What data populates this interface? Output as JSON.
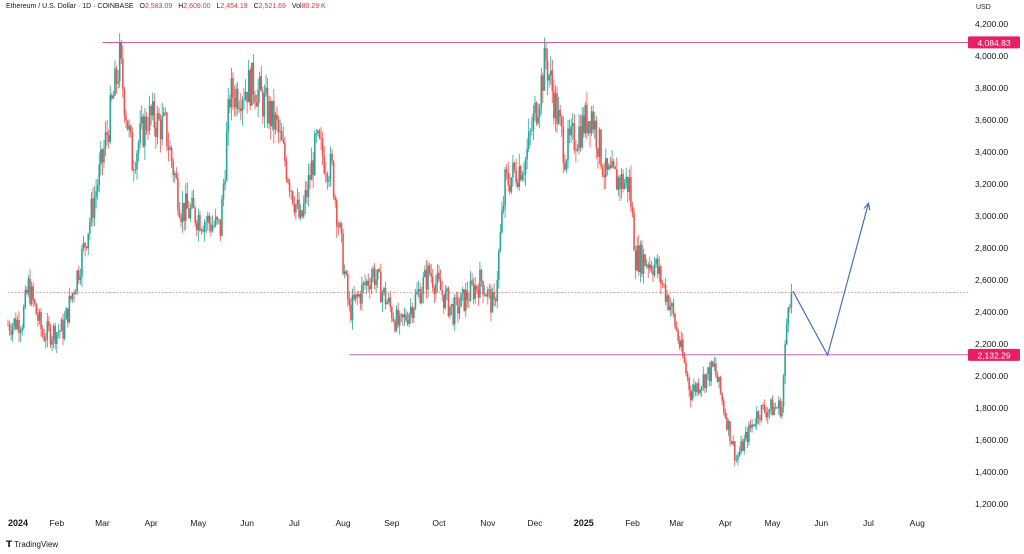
{
  "header": {
    "symbol": "Ethereum / U.S. Dollar · 1D · COINBASE",
    "open_label": "O",
    "open": "2,583.09",
    "high_label": "H",
    "high": "2,609.00",
    "low_label": "L",
    "low": "2,454.19",
    "close_label": "C",
    "close": "2,521.69",
    "vol_label": "Vol",
    "vol": "80.29 K"
  },
  "currency": "USD",
  "branding": "TradingView",
  "colors": {
    "up": "#26a69a",
    "down": "#ef5350",
    "level_line": "#c44ca0",
    "level_badge": "#e91e63",
    "projection": "#4a6fb5",
    "price_line": "#e57373"
  },
  "chart_data": {
    "type": "candlestick",
    "y_axis": {
      "ylim": [
        1150,
        4300
      ],
      "ticks": [
        1200,
        1400,
        1600,
        1800,
        2000,
        2200,
        2400,
        2600,
        2800,
        3000,
        3200,
        3400,
        3600,
        3800,
        4000,
        4200
      ],
      "tick_labels": [
        "1,200.00",
        "1,400.00",
        "1,600.00",
        "1,800.00",
        "2,000.00",
        "2,200.00",
        "2,400.00",
        "2,600.00",
        "2,800.00",
        "3,000.00",
        "3,200.00",
        "3,400.00",
        "3,600.00",
        "3,800.00",
        "4,000.00",
        "4,200.00"
      ]
    },
    "x_axis": {
      "range": [
        "2024-01-01",
        "2025-08-25"
      ],
      "ticks": [
        {
          "date": "2024-01-01",
          "label": "2024",
          "bold": true
        },
        {
          "date": "2024-02-01",
          "label": "Feb"
        },
        {
          "date": "2024-03-01",
          "label": "Mar"
        },
        {
          "date": "2024-04-01",
          "label": "Apr"
        },
        {
          "date": "2024-05-01",
          "label": "May"
        },
        {
          "date": "2024-06-01",
          "label": "Jun"
        },
        {
          "date": "2024-07-01",
          "label": "Jul"
        },
        {
          "date": "2024-08-01",
          "label": "Aug"
        },
        {
          "date": "2024-09-01",
          "label": "Sep"
        },
        {
          "date": "2024-10-01",
          "label": "Oct"
        },
        {
          "date": "2024-11-01",
          "label": "Nov"
        },
        {
          "date": "2024-12-01",
          "label": "Dec"
        },
        {
          "date": "2025-01-01",
          "label": "2025",
          "bold": true
        },
        {
          "date": "2025-02-01",
          "label": "Feb"
        },
        {
          "date": "2025-03-01",
          "label": "Mar"
        },
        {
          "date": "2025-04-01",
          "label": "Apr"
        },
        {
          "date": "2025-05-01",
          "label": "May"
        },
        {
          "date": "2025-06-01",
          "label": "Jun"
        },
        {
          "date": "2025-07-01",
          "label": "Jul"
        },
        {
          "date": "2025-08-01",
          "label": "Aug"
        }
      ]
    },
    "horizontal_levels": [
      {
        "value": 4084.83,
        "label": "4,084.83",
        "from": "2024-03-01"
      },
      {
        "value": 2132.29,
        "label": "2,132.29",
        "from": "2024-08-05"
      }
    ],
    "current_price": {
      "value": 2521.69,
      "from": "2024-01-01"
    },
    "projection": [
      {
        "date": "2025-05-14",
        "value": 2530
      },
      {
        "date": "2025-06-05",
        "value": 2130
      },
      {
        "date": "2025-07-01",
        "value": 3080
      }
    ],
    "price_path": [
      {
        "date": "2024-01-01",
        "value": 2320
      },
      {
        "date": "2024-01-10",
        "value": 2350
      },
      {
        "date": "2024-01-14",
        "value": 2560
      },
      {
        "date": "2024-01-23",
        "value": 2260
      },
      {
        "date": "2024-02-05",
        "value": 2290
      },
      {
        "date": "2024-02-18",
        "value": 2790
      },
      {
        "date": "2024-03-01",
        "value": 3350
      },
      {
        "date": "2024-03-12",
        "value": 3970
      },
      {
        "date": "2024-03-20",
        "value": 3350
      },
      {
        "date": "2024-03-30",
        "value": 3620
      },
      {
        "date": "2024-04-10",
        "value": 3550
      },
      {
        "date": "2024-04-20",
        "value": 3050
      },
      {
        "date": "2024-05-01",
        "value": 3000
      },
      {
        "date": "2024-05-15",
        "value": 2920
      },
      {
        "date": "2024-05-21",
        "value": 3750
      },
      {
        "date": "2024-06-05",
        "value": 3830
      },
      {
        "date": "2024-06-20",
        "value": 3550
      },
      {
        "date": "2024-07-05",
        "value": 2950
      },
      {
        "date": "2024-07-15",
        "value": 3450
      },
      {
        "date": "2024-07-25",
        "value": 3280
      },
      {
        "date": "2024-08-05",
        "value": 2400
      },
      {
        "date": "2024-08-20",
        "value": 2650
      },
      {
        "date": "2024-09-06",
        "value": 2300
      },
      {
        "date": "2024-09-25",
        "value": 2650
      },
      {
        "date": "2024-10-10",
        "value": 2400
      },
      {
        "date": "2024-10-28",
        "value": 2600
      },
      {
        "date": "2024-11-05",
        "value": 2420
      },
      {
        "date": "2024-11-12",
        "value": 3200
      },
      {
        "date": "2024-11-25",
        "value": 3350
      },
      {
        "date": "2024-12-08",
        "value": 3980
      },
      {
        "date": "2024-12-20",
        "value": 3400
      },
      {
        "date": "2025-01-06",
        "value": 3650
      },
      {
        "date": "2025-01-15",
        "value": 3250
      },
      {
        "date": "2025-01-30",
        "value": 3200
      },
      {
        "date": "2025-02-03",
        "value": 2750
      },
      {
        "date": "2025-02-15",
        "value": 2700
      },
      {
        "date": "2025-02-25",
        "value": 2450
      },
      {
        "date": "2025-03-10",
        "value": 1900
      },
      {
        "date": "2025-03-25",
        "value": 2050
      },
      {
        "date": "2025-04-08",
        "value": 1480
      },
      {
        "date": "2025-04-22",
        "value": 1780
      },
      {
        "date": "2025-05-07",
        "value": 1810
      },
      {
        "date": "2025-05-11",
        "value": 2500
      },
      {
        "date": "2025-05-13",
        "value": 2521.69
      }
    ]
  }
}
